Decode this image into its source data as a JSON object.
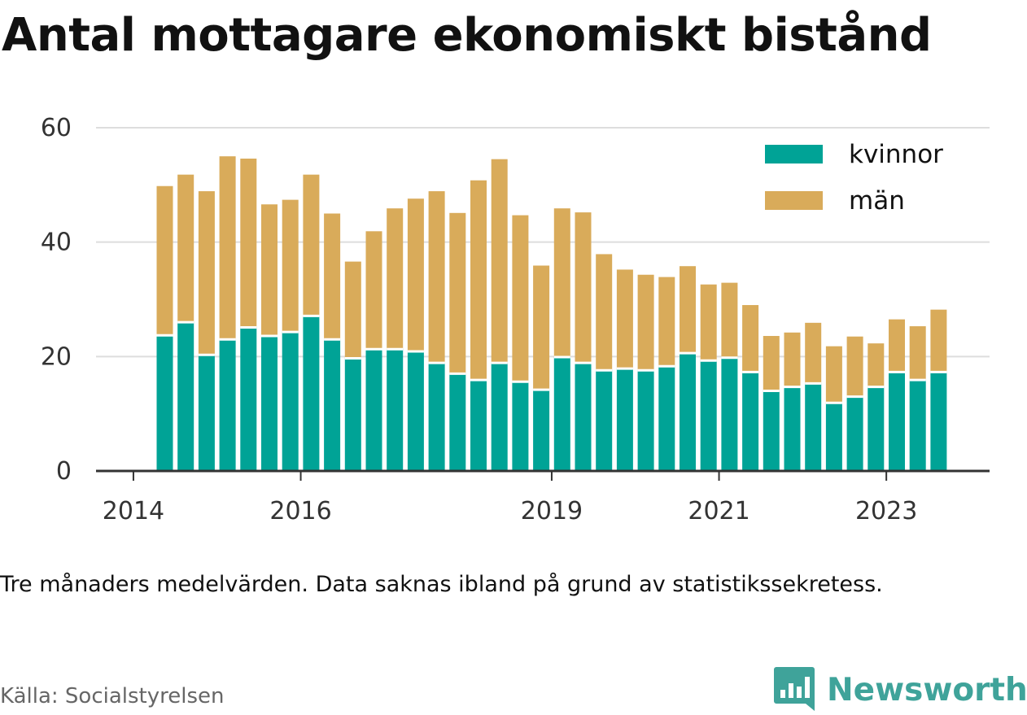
{
  "title": "Antal mottagare ekonomiskt bistånd",
  "note": "Tre månaders medelvärden. Data saknas ibland på grund av statistikssekretess.",
  "source": "Källa: Socialstyrelsen",
  "brand": {
    "name": "Newsworthy",
    "icon": "newsworthy-logo-icon",
    "color": "#3fa39a"
  },
  "chart_data": {
    "type": "bar",
    "stacked": true,
    "categories": [
      "2014-Q2",
      "2014-Q3",
      "2014-Q4",
      "2015-Q1",
      "2015-Q2",
      "2015-Q3",
      "2015-Q4",
      "2016-Q1",
      "2016-Q2",
      "2016-Q3",
      "2016-Q4",
      "2017-Q1",
      "2017-Q2",
      "2017-Q3",
      "2017-Q4",
      "2018-Q1",
      "2018-Q2",
      "2018-Q3",
      "2018-Q4",
      "2019-Q1",
      "2019-Q2",
      "2019-Q3",
      "2019-Q4",
      "2020-Q1",
      "2020-Q2",
      "2020-Q3",
      "2020-Q4",
      "2021-Q1",
      "2021-Q2",
      "2021-Q3",
      "2021-Q4",
      "2022-Q1",
      "2022-Q2",
      "2022-Q3",
      "2022-Q4",
      "2023-Q1",
      "2023-Q2",
      "2023-Q3"
    ],
    "series": [
      {
        "name": "kvinnor",
        "color": "#00a396",
        "values": [
          23.7,
          26.0,
          20.3,
          23.0,
          25.1,
          23.6,
          24.3,
          27.1,
          23.0,
          19.7,
          21.3,
          21.3,
          20.9,
          18.9,
          17.0,
          15.9,
          18.9,
          15.6,
          14.2,
          19.9,
          18.9,
          17.6,
          17.9,
          17.6,
          18.3,
          20.6,
          19.3,
          19.8,
          17.3,
          14.0,
          14.7,
          15.3,
          11.9,
          13.0,
          14.7,
          17.3,
          15.9,
          17.3
        ]
      },
      {
        "name": "män",
        "color": "#d9ab5a",
        "values": [
          26.1,
          25.8,
          28.6,
          32.0,
          29.5,
          23.0,
          23.1,
          24.7,
          22.0,
          16.9,
          20.6,
          24.6,
          26.7,
          30.0,
          28.1,
          34.9,
          35.6,
          29.1,
          21.7,
          26.0,
          26.3,
          20.3,
          17.3,
          16.7,
          15.6,
          15.2,
          13.3,
          13.1,
          11.7,
          9.6,
          9.5,
          10.6,
          9.9,
          10.5,
          7.6,
          9.2,
          9.4,
          10.9
        ]
      }
    ],
    "x_ticks": [
      "2014",
      "2016",
      "2019",
      "2021",
      "2023"
    ],
    "y_ticks": [
      0,
      20,
      40,
      60
    ],
    "ylim": [
      0,
      60
    ],
    "xlabel": "",
    "ylabel": "",
    "grid": true,
    "legend": {
      "position": "top-right",
      "entries": [
        "kvinnor",
        "män"
      ]
    }
  }
}
